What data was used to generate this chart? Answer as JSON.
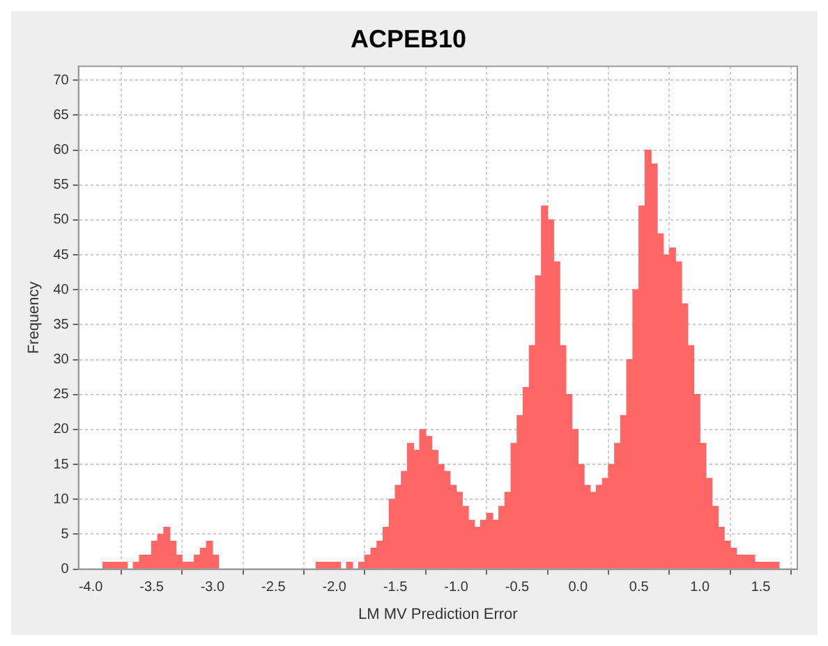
{
  "chart_data": {
    "type": "histogram",
    "title": "ACPEB10",
    "xlabel": "LM MV Prediction Error",
    "ylabel": "Frequency",
    "color": "#ff6666",
    "bins": [
      -3.9,
      -3.85,
      -3.8,
      -3.75,
      -3.7,
      -3.65,
      -3.6,
      -3.55,
      -3.5,
      -3.45,
      -3.4,
      -3.35,
      -3.3,
      -3.25,
      -3.2,
      -3.15,
      -3.1,
      -3.05,
      -3,
      -2.95,
      -2.9,
      -2.85,
      -2.8,
      -2.75,
      -2.7,
      -2.65,
      -2.6,
      -2.55,
      -2.5,
      -2.45,
      -2.4,
      -2.35,
      -2.3,
      -2.25,
      -2.2,
      -2.15,
      -2.1,
      -2.05,
      -2,
      -1.95,
      -1.9,
      -1.85,
      -1.8,
      -1.75,
      -1.7,
      -1.65,
      -1.6,
      -1.55,
      -1.5,
      -1.45,
      -1.4,
      -1.35,
      -1.3,
      -1.25,
      -1.2,
      -1.15,
      -1.1,
      -1.05,
      -1,
      -0.95,
      -0.9,
      -0.85,
      -0.8,
      -0.75,
      -0.7,
      -0.65,
      -0.6,
      -0.55,
      -0.5,
      -0.45,
      -0.4,
      -0.35,
      -0.3,
      -0.25,
      -0.2,
      -0.15,
      -0.1,
      -0.05,
      0,
      0.05,
      0.1,
      0.15,
      0.2,
      0.25,
      0.3,
      0.35,
      0.4,
      0.45,
      0.5,
      0.55,
      0.6,
      0.65,
      0.7,
      0.75,
      0.8,
      0.85,
      0.9,
      0.95,
      1,
      1.05,
      1.1,
      1.15,
      1.2,
      1.25,
      1.3,
      1.35,
      1.4,
      1.45,
      1.5,
      1.55,
      1.6,
      1.65
    ],
    "values": [
      1,
      1,
      1,
      1,
      0,
      1,
      2,
      2,
      4,
      5,
      6,
      4,
      2,
      1,
      1,
      2,
      3,
      4,
      2,
      0,
      0,
      0,
      0,
      0,
      0,
      0,
      0,
      0,
      0,
      0,
      0,
      0,
      0,
      0,
      0,
      1,
      1,
      1,
      1,
      0,
      1,
      0,
      1,
      2,
      3,
      4,
      6,
      10,
      12,
      14,
      18,
      17,
      20,
      19,
      17,
      15,
      14,
      12,
      11,
      9,
      7,
      6,
      7,
      8,
      7,
      9,
      11,
      18,
      22,
      26,
      32,
      42,
      52,
      50,
      44,
      32,
      25,
      20,
      15,
      12,
      11,
      12,
      13,
      15,
      18,
      22,
      30,
      40,
      52,
      60,
      58,
      48,
      45,
      46,
      44,
      38,
      32,
      25,
      18,
      13,
      9,
      6,
      4,
      3,
      2,
      2,
      2,
      1,
      1,
      1,
      1
    ],
    "xlim": [
      -4.1,
      1.8
    ],
    "xticks": [
      {
        "value": -4,
        "label": "-4.0"
      },
      {
        "value": -3.5,
        "label": "-3.5"
      },
      {
        "value": -3,
        "label": "-3.0"
      },
      {
        "value": -2.5,
        "label": "-2.5"
      },
      {
        "value": -2,
        "label": "-2.0"
      },
      {
        "value": -1.5,
        "label": "-1.5"
      },
      {
        "value": -1,
        "label": "-1.0"
      },
      {
        "value": -0.5,
        "label": "-0.5"
      },
      {
        "value": 0,
        "label": "0.0"
      },
      {
        "value": 0.5,
        "label": "0.5"
      },
      {
        "value": 1,
        "label": "1.0"
      },
      {
        "value": 1.5,
        "label": "1.5"
      }
    ],
    "ylim": [
      0,
      72
    ],
    "yticks": [
      0,
      5,
      10,
      15,
      20,
      25,
      30,
      35,
      40,
      45,
      50,
      55,
      60,
      65,
      70
    ],
    "grid": true
  }
}
